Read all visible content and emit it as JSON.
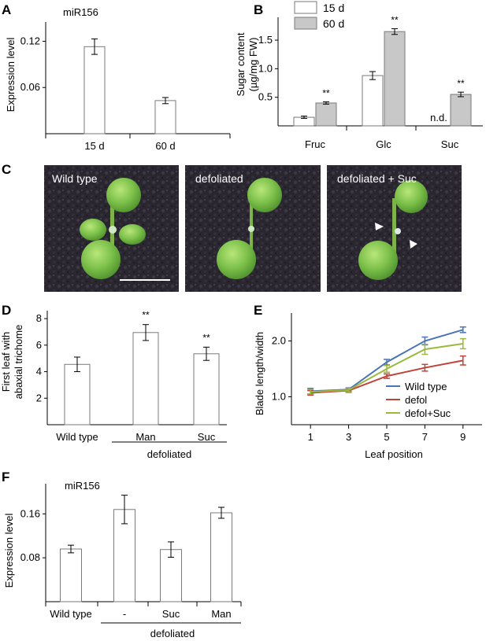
{
  "panels": {
    "A": {
      "letter": "A",
      "inset_title": "miR156",
      "chart_data": {
        "type": "bar",
        "categories": [
          "15 d",
          "60 d"
        ],
        "values": [
          0.113,
          0.043
        ],
        "errors": [
          0.01,
          0.004
        ],
        "ylabel": "Expression level",
        "yticks": [
          "0.06",
          "0.12"
        ],
        "ylim": [
          0,
          0.145
        ]
      }
    },
    "B": {
      "letter": "B",
      "chart_data": {
        "type": "bar",
        "categories": [
          "Fruc",
          "Glc",
          "Suc"
        ],
        "series": [
          {
            "name": "15 d",
            "values": [
              0.15,
              0.88,
              null
            ],
            "errors": [
              0.02,
              0.07,
              null
            ],
            "color": "#ffffff"
          },
          {
            "name": "60 d",
            "values": [
              0.4,
              1.65,
              0.55
            ],
            "errors": [
              0.02,
              0.05,
              0.04
            ],
            "color": "#c8c8c8"
          }
        ],
        "significance": [
          "**",
          "**",
          "**"
        ],
        "missing_label": "n.d.",
        "ylabel_line1": "Sugar content",
        "ylabel_line2": "(µg/mg FW)",
        "yticks": [
          "0.5",
          "1.0",
          "1.5"
        ],
        "ylim": [
          0,
          1.9
        ]
      }
    },
    "C": {
      "letter": "C",
      "photos": [
        {
          "label": "Wild type"
        },
        {
          "label": "defoliated"
        },
        {
          "label": "defoliated + Suc"
        }
      ]
    },
    "D": {
      "letter": "D",
      "chart_data": {
        "type": "bar",
        "categories": [
          "Wild type",
          "Man",
          "Suc"
        ],
        "values": [
          4.55,
          6.95,
          5.35
        ],
        "errors": [
          0.55,
          0.6,
          0.5
        ],
        "significance": [
          "",
          "**",
          "**"
        ],
        "group_label": "defoliated",
        "ylabel_line1": "First leaf with",
        "ylabel_line2": "abaxial trichome",
        "yticks": [
          "2",
          "4",
          "6",
          "8"
        ],
        "ylim": [
          0,
          8.6
        ]
      }
    },
    "E": {
      "letter": "E",
      "chart_data": {
        "type": "line",
        "x": [
          1,
          3,
          5,
          7,
          9
        ],
        "xticks": [
          "1",
          "3",
          "5",
          "7",
          "9"
        ],
        "series": [
          {
            "name": "Wild type",
            "color": "#4a74b5",
            "values": [
              1.1,
              1.13,
              1.62,
              2.0,
              2.2
            ],
            "errors": [
              0.05,
              0.03,
              0.05,
              0.07,
              0.05
            ]
          },
          {
            "name": "defol",
            "color": "#c0433b",
            "values": [
              1.07,
              1.11,
              1.37,
              1.52,
              1.65
            ],
            "errors": [
              0.04,
              0.03,
              0.04,
              0.06,
              0.08
            ]
          },
          {
            "name": "defol+Suc",
            "color": "#9bba3c",
            "values": [
              1.09,
              1.12,
              1.5,
              1.85,
              1.95
            ],
            "errors": [
              0.04,
              0.03,
              0.06,
              0.09,
              0.09
            ]
          }
        ],
        "xlabel": "Leaf position",
        "ylabel": "Blade length/width",
        "yticks": [
          "1.0",
          "2.0"
        ],
        "ylim": [
          0.5,
          2.5
        ],
        "xlim": [
          0,
          10
        ],
        "legend": "bottom-right"
      }
    },
    "F": {
      "letter": "F",
      "inset_title": "miR156",
      "chart_data": {
        "type": "bar",
        "categories": [
          "Wild type",
          "-",
          "Suc",
          "Man"
        ],
        "values": [
          0.096,
          0.168,
          0.095,
          0.162
        ],
        "errors": [
          0.007,
          0.026,
          0.014,
          0.01
        ],
        "group_label": "defoliated",
        "ylabel": "Expression level",
        "yticks": [
          "0.08",
          "0.16"
        ],
        "ylim": [
          0,
          0.215
        ]
      }
    }
  }
}
